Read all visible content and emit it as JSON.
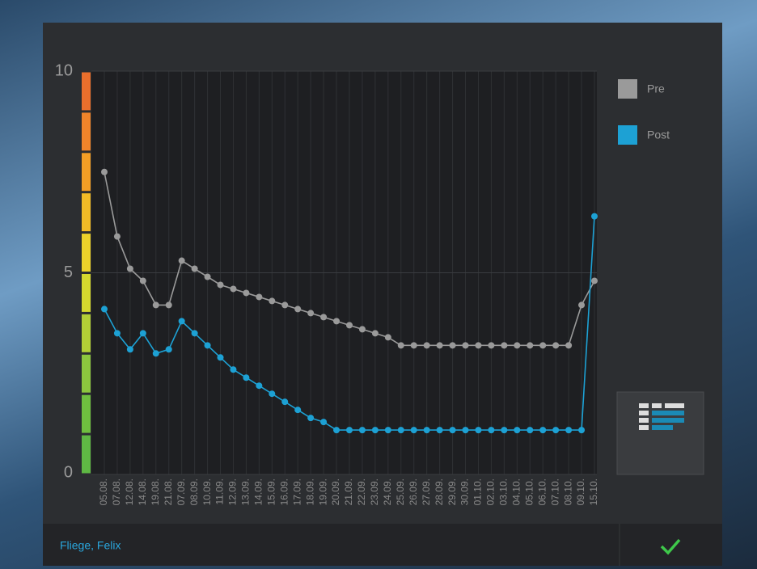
{
  "chart_data": {
    "type": "line",
    "categories": [
      "05.08.",
      "07.08.",
      "12.08.",
      "14.08.",
      "19.08.",
      "21.08.",
      "07.09.",
      "08.09.",
      "10.09.",
      "11.09.",
      "12.09.",
      "13.09.",
      "14.09.",
      "15.09.",
      "16.09.",
      "17.09.",
      "18.09.",
      "19.09.",
      "20.09.",
      "21.09.",
      "22.09.",
      "23.09.",
      "24.09.",
      "25.09.",
      "26.09.",
      "27.09.",
      "28.09.",
      "29.09.",
      "30.09.",
      "01.10.",
      "02.10.",
      "03.10.",
      "04.10.",
      "05.10.",
      "06.10.",
      "07.10.",
      "08.10.",
      "09.10.",
      "15.10."
    ],
    "series": [
      {
        "name": "Pre",
        "color": "#9a9a9a",
        "values": [
          7.5,
          5.9,
          5.1,
          4.8,
          4.2,
          4.2,
          5.3,
          5.1,
          4.9,
          4.7,
          4.6,
          4.5,
          4.4,
          4.3,
          4.2,
          4.1,
          4.0,
          3.9,
          3.8,
          3.7,
          3.6,
          3.5,
          3.4,
          3.2,
          3.2,
          3.2,
          3.2,
          3.2,
          3.2,
          3.2,
          3.2,
          3.2,
          3.2,
          3.2,
          3.2,
          3.2,
          3.2,
          4.2,
          4.8
        ]
      },
      {
        "name": "Post",
        "color": "#1da1d4",
        "values": [
          4.1,
          3.5,
          3.1,
          3.5,
          3.0,
          3.1,
          3.8,
          3.5,
          3.2,
          2.9,
          2.6,
          2.4,
          2.2,
          2.0,
          1.8,
          1.6,
          1.4,
          1.3,
          1.1,
          1.1,
          1.1,
          1.1,
          1.1,
          1.1,
          1.1,
          1.1,
          1.1,
          1.1,
          1.1,
          1.1,
          1.1,
          1.1,
          1.1,
          1.1,
          1.1,
          1.1,
          1.1,
          1.1,
          6.4
        ]
      }
    ],
    "ylim": [
      0,
      10
    ],
    "yticks": [
      0,
      5,
      10
    ],
    "grid": true,
    "legend": "right"
  },
  "footer": {
    "patient": "Fliege, Felix"
  }
}
